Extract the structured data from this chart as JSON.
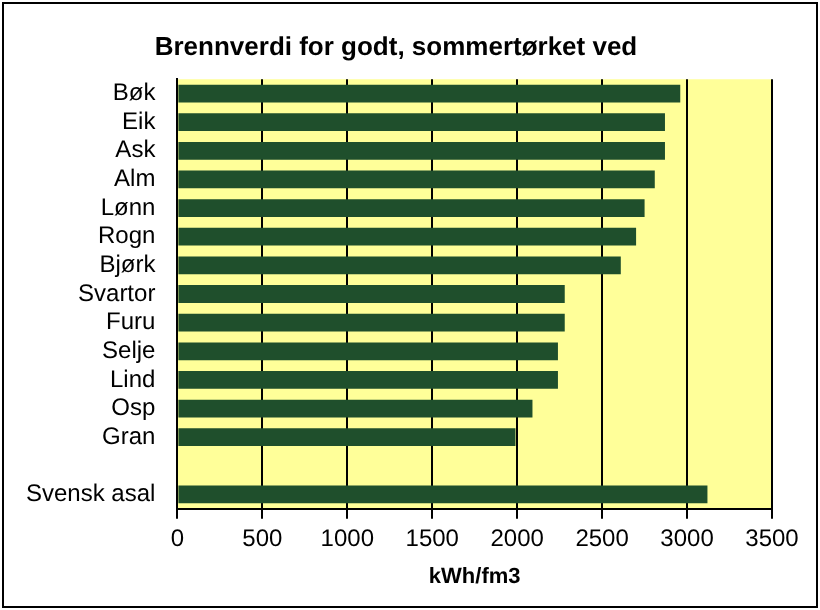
{
  "chart_data": {
    "type": "bar",
    "orientation": "horizontal",
    "title": "Brennverdi for godt, sommertørket ved",
    "xlabel": "kWh/fm3",
    "categories": [
      "Bøk",
      "Eik",
      "Ask",
      "Alm",
      "Lønn",
      "Rogn",
      "Bjørk",
      "Svartor",
      "Furu",
      "Selje",
      "Lind",
      "Osp",
      "Gran",
      null,
      "Svensk asal"
    ],
    "values": [
      2960,
      2870,
      2870,
      2810,
      2750,
      2700,
      2610,
      2280,
      2280,
      2240,
      2240,
      2090,
      1990,
      null,
      3120
    ],
    "color": "#1f4f2c",
    "xlim": [
      0,
      3500
    ],
    "xticks": [
      0,
      500,
      1000,
      1500,
      2000,
      2500,
      3000,
      3500
    ],
    "grid": "x",
    "legend": false
  }
}
